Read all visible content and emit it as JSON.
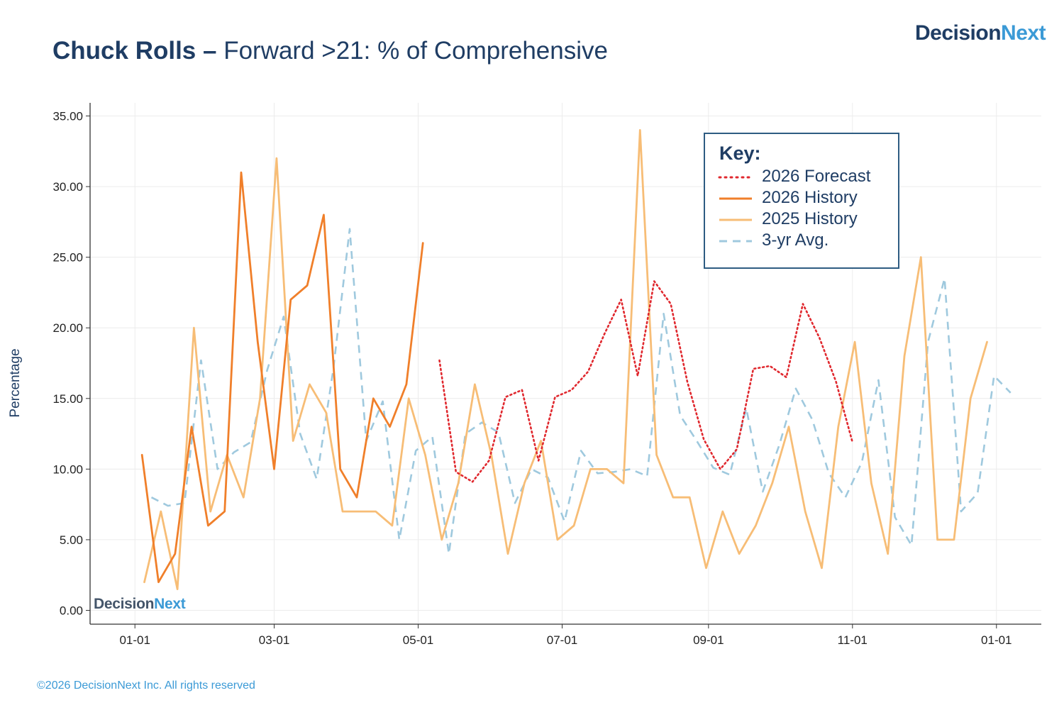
{
  "header": {
    "title_bold": "Chuck Rolls",
    "title_dash": " – ",
    "title_rest": "Forward >21: % of Comprehensive"
  },
  "logo": {
    "main": "Decision",
    "accent": "Next"
  },
  "footer": "©2026 DecisionNext Inc. All rights reserved",
  "colors": {
    "forecast": "#e0282e",
    "history_2026": "#f07f2a",
    "history_2025": "#f7bd76",
    "avg3": "#9fc9de",
    "axis": "#333333",
    "grid": "#ececec",
    "text_dark": "#1f3d64",
    "accent": "#3b9ad6"
  },
  "chart_data": {
    "type": "line",
    "ylabel": "Percentage",
    "ylim": [
      0,
      35
    ],
    "yticks": [
      "0.00",
      "5.00",
      "10.00",
      "15.00",
      "20.00",
      "25.00",
      "30.00",
      "35.00"
    ],
    "xticks": [
      {
        "label": "01-01",
        "date": "2026-01-01"
      },
      {
        "label": "03-01",
        "date": "2026-03-01"
      },
      {
        "label": "05-01",
        "date": "2026-05-01"
      },
      {
        "label": "07-01",
        "date": "2026-07-01"
      },
      {
        "label": "09-01",
        "date": "2026-09-01"
      },
      {
        "label": "11-01",
        "date": "2026-11-01"
      },
      {
        "label": "01-01",
        "date": "2027-01-01"
      }
    ],
    "xlim": [
      "2025-12-13",
      "2027-01-20"
    ],
    "grid": true,
    "legend": {
      "title": "Key:",
      "placement": "top-right",
      "entries": [
        "2026 Forecast",
        "2026 History",
        "2025 History",
        "3-yr Avg."
      ]
    },
    "series": [
      {
        "name": "3-yr Avg.",
        "style": "dashed",
        "points": [
          [
            "2026-01-08",
            8.0
          ],
          [
            "2026-01-15",
            7.4
          ],
          [
            "2026-01-22",
            7.6
          ],
          [
            "2026-01-29",
            17.7
          ],
          [
            "2026-02-05",
            10.0
          ],
          [
            "2026-02-12",
            11.2
          ],
          [
            "2026-02-19",
            11.9
          ],
          [
            "2026-02-26",
            17.0
          ],
          [
            "2026-03-05",
            20.8
          ],
          [
            "2026-03-12",
            12.5
          ],
          [
            "2026-03-19",
            9.3
          ],
          [
            "2026-03-26",
            17.0
          ],
          [
            "2026-04-02",
            27.0
          ],
          [
            "2026-04-09",
            12.0
          ],
          [
            "2026-04-16",
            14.8
          ],
          [
            "2026-04-23",
            5.0
          ],
          [
            "2026-04-30",
            11.3
          ],
          [
            "2026-05-07",
            12.3
          ],
          [
            "2026-05-14",
            4.0
          ],
          [
            "2026-05-21",
            12.5
          ],
          [
            "2026-05-28",
            13.3
          ],
          [
            "2026-06-04",
            12.6
          ],
          [
            "2026-06-11",
            7.6
          ],
          [
            "2026-06-18",
            10.0
          ],
          [
            "2026-06-25",
            9.4
          ],
          [
            "2026-07-02",
            6.3
          ],
          [
            "2026-07-09",
            11.3
          ],
          [
            "2026-07-16",
            9.7
          ],
          [
            "2026-07-23",
            9.8
          ],
          [
            "2026-07-30",
            10.0
          ],
          [
            "2026-08-06",
            9.5
          ],
          [
            "2026-08-13",
            21.0
          ],
          [
            "2026-08-20",
            13.8
          ],
          [
            "2026-08-27",
            12.0
          ],
          [
            "2026-09-03",
            10.1
          ],
          [
            "2026-09-10",
            9.6
          ],
          [
            "2026-09-17",
            14.3
          ],
          [
            "2026-09-24",
            8.4
          ],
          [
            "2026-10-01",
            11.7
          ],
          [
            "2026-10-08",
            15.7
          ],
          [
            "2026-10-15",
            13.5
          ],
          [
            "2026-10-22",
            9.7
          ],
          [
            "2026-10-29",
            8.0
          ],
          [
            "2026-11-05",
            10.5
          ],
          [
            "2026-11-12",
            16.3
          ],
          [
            "2026-11-19",
            6.6
          ],
          [
            "2026-11-26",
            4.6
          ],
          [
            "2026-12-03",
            19.0
          ],
          [
            "2026-12-10",
            23.5
          ],
          [
            "2026-12-17",
            7.0
          ],
          [
            "2026-12-24",
            8.3
          ],
          [
            "2026-12-31",
            16.6
          ],
          [
            "2027-01-07",
            15.4
          ]
        ]
      },
      {
        "name": "2025 History",
        "style": "solid",
        "points": [
          [
            "2026-01-05",
            2.0
          ],
          [
            "2026-01-12",
            7.0
          ],
          [
            "2026-01-19",
            1.5
          ],
          [
            "2026-01-26",
            20.0
          ],
          [
            "2026-02-02",
            7.0
          ],
          [
            "2026-02-09",
            11.0
          ],
          [
            "2026-02-16",
            8.0
          ],
          [
            "2026-02-23",
            15.0
          ],
          [
            "2026-03-02",
            32.0
          ],
          [
            "2026-03-09",
            12.0
          ],
          [
            "2026-03-16",
            16.0
          ],
          [
            "2026-03-23",
            14.0
          ],
          [
            "2026-03-30",
            7.0
          ],
          [
            "2026-04-06",
            7.0
          ],
          [
            "2026-04-13",
            7.0
          ],
          [
            "2026-04-20",
            6.0
          ],
          [
            "2026-04-27",
            15.0
          ],
          [
            "2026-05-04",
            11.0
          ],
          [
            "2026-05-11",
            5.0
          ],
          [
            "2026-05-18",
            9.0
          ],
          [
            "2026-05-25",
            16.0
          ],
          [
            "2026-06-01",
            11.0
          ],
          [
            "2026-06-08",
            4.0
          ],
          [
            "2026-06-15",
            9.0
          ],
          [
            "2026-06-22",
            12.0
          ],
          [
            "2026-06-29",
            5.0
          ],
          [
            "2026-07-06",
            6.0
          ],
          [
            "2026-07-13",
            10.0
          ],
          [
            "2026-07-20",
            10.0
          ],
          [
            "2026-07-27",
            9.0
          ],
          [
            "2026-08-03",
            34.0
          ],
          [
            "2026-08-10",
            11.0
          ],
          [
            "2026-08-17",
            8.0
          ],
          [
            "2026-08-24",
            8.0
          ],
          [
            "2026-08-31",
            3.0
          ],
          [
            "2026-09-07",
            7.0
          ],
          [
            "2026-09-14",
            4.0
          ],
          [
            "2026-09-21",
            6.0
          ],
          [
            "2026-09-28",
            9.0
          ],
          [
            "2026-10-05",
            13.0
          ],
          [
            "2026-10-12",
            7.0
          ],
          [
            "2026-10-19",
            3.0
          ],
          [
            "2026-10-26",
            13.0
          ],
          [
            "2026-11-02",
            19.0
          ],
          [
            "2026-11-09",
            9.0
          ],
          [
            "2026-11-16",
            4.0
          ],
          [
            "2026-11-23",
            18.0
          ],
          [
            "2026-11-30",
            25.0
          ],
          [
            "2026-12-07",
            5.0
          ],
          [
            "2026-12-14",
            5.0
          ],
          [
            "2026-12-21",
            15.0
          ],
          [
            "2026-12-28",
            19.0
          ]
        ]
      },
      {
        "name": "2026 History",
        "style": "solid",
        "points": [
          [
            "2026-01-04",
            11.0
          ],
          [
            "2026-01-11",
            2.0
          ],
          [
            "2026-01-18",
            4.0
          ],
          [
            "2026-01-25",
            13.0
          ],
          [
            "2026-02-01",
            6.0
          ],
          [
            "2026-02-08",
            7.0
          ],
          [
            "2026-02-15",
            31.0
          ],
          [
            "2026-02-22",
            19.0
          ],
          [
            "2026-03-01",
            10.0
          ],
          [
            "2026-03-08",
            22.0
          ],
          [
            "2026-03-15",
            23.0
          ],
          [
            "2026-03-22",
            28.0
          ],
          [
            "2026-03-29",
            10.0
          ],
          [
            "2026-04-05",
            8.0
          ],
          [
            "2026-04-12",
            15.0
          ],
          [
            "2026-04-19",
            13.0
          ],
          [
            "2026-04-26",
            16.0
          ],
          [
            "2026-05-03",
            26.0
          ]
        ]
      },
      {
        "name": "2026 Forecast",
        "style": "dotted",
        "points": [
          [
            "2026-05-10",
            17.7
          ],
          [
            "2026-05-17",
            9.8
          ],
          [
            "2026-05-24",
            9.1
          ],
          [
            "2026-05-31",
            10.6
          ],
          [
            "2026-06-07",
            15.1
          ],
          [
            "2026-06-14",
            15.6
          ],
          [
            "2026-06-21",
            10.6
          ],
          [
            "2026-06-28",
            15.1
          ],
          [
            "2026-07-05",
            15.6
          ],
          [
            "2026-07-12",
            16.9
          ],
          [
            "2026-07-19",
            19.6
          ],
          [
            "2026-07-26",
            22.0
          ],
          [
            "2026-08-02",
            16.6
          ],
          [
            "2026-08-09",
            23.3
          ],
          [
            "2026-08-16",
            21.7
          ],
          [
            "2026-08-23",
            16.2
          ],
          [
            "2026-08-30",
            12.1
          ],
          [
            "2026-09-06",
            10.0
          ],
          [
            "2026-09-13",
            11.4
          ],
          [
            "2026-09-20",
            17.1
          ],
          [
            "2026-09-27",
            17.3
          ],
          [
            "2026-10-04",
            16.5
          ],
          [
            "2026-10-11",
            21.7
          ],
          [
            "2026-10-18",
            19.3
          ],
          [
            "2026-10-25",
            16.2
          ],
          [
            "2026-11-01",
            11.9
          ]
        ]
      }
    ]
  }
}
